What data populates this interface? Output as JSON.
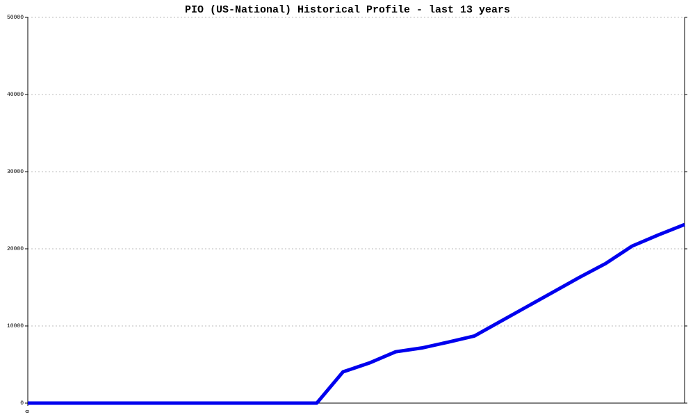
{
  "chart_data": {
    "type": "line",
    "title": "PIO (US-National) Historical Profile - last 13 years",
    "x": [
      0,
      1,
      2,
      3,
      4,
      5,
      6,
      7,
      8,
      9,
      10,
      11,
      12,
      13,
      14,
      15,
      16,
      17,
      18,
      19,
      20,
      21,
      22,
      23,
      24,
      25
    ],
    "series": [
      {
        "color": "#0000ee",
        "values": [
          0,
          0,
          0,
          0,
          0,
          0,
          0,
          0,
          0,
          0,
          0,
          0,
          4050,
          5200,
          6650,
          7150,
          7900,
          8700,
          10600,
          12500,
          14400,
          16300,
          18100,
          20350,
          21800,
          23150
        ]
      }
    ],
    "xlim": [
      0,
      25
    ],
    "xticks": [
      0
    ],
    "ylim": [
      0,
      50000
    ],
    "yticks": [
      0,
      10000,
      20000,
      30000,
      40000,
      50000
    ],
    "grid": true
  }
}
